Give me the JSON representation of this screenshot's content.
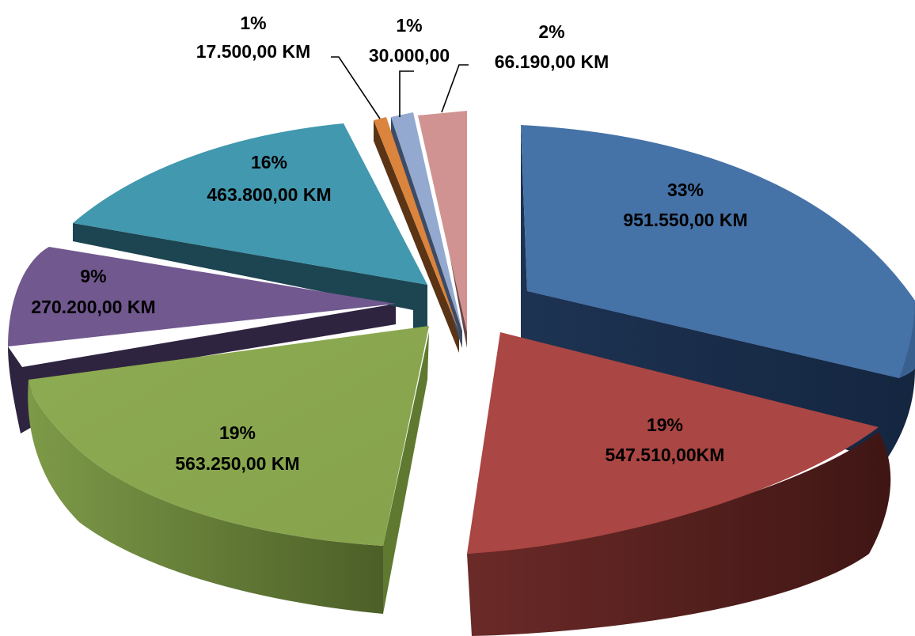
{
  "chart_data": {
    "type": "pie",
    "style": "3d-exploded",
    "title": "",
    "legend": "none",
    "slices": [
      {
        "percent": "33%",
        "value_label": "951.550,00 KM",
        "value": 951550.0,
        "color": "#4572A7"
      },
      {
        "percent": "19%",
        "value_label": "547.510,00KM",
        "value": 547510.0,
        "color": "#AA4643"
      },
      {
        "percent": "19%",
        "value_label": "563.250,00 KM",
        "value": 563250.0,
        "color": "#89A54E"
      },
      {
        "percent": "9%",
        "value_label": "270.200,00 KM",
        "value": 270200.0,
        "color": "#71588F"
      },
      {
        "percent": "16%",
        "value_label": "463.800,00 KM",
        "value": 463800.0,
        "color": "#4198AF"
      },
      {
        "percent": "1%",
        "value_label": "17.500,00 KM",
        "value": 17500.0,
        "color": "#DB843D"
      },
      {
        "percent": "1%",
        "value_label": "30.000,00",
        "value": 30000.0,
        "color": "#93A9CF"
      },
      {
        "percent": "2%",
        "value_label": "66.190,00 KM",
        "value": 66190.0,
        "color": "#D19392"
      }
    ]
  }
}
